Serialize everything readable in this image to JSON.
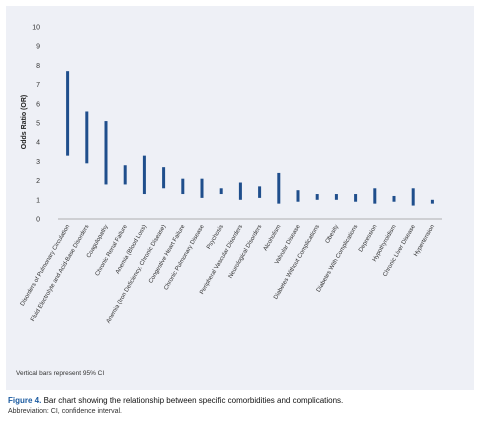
{
  "figure": {
    "label": "Figure 4.",
    "caption": " Bar chart showing the relationship between specific comorbidities and complications.",
    "abbreviation": "Abbreviation: CI, confidence interval.",
    "footnote": "Vertical bars represent 95% CI"
  },
  "colors": {
    "bar": "#1f4e8c",
    "background": "#eef0f6",
    "axis": "#999999"
  },
  "chart_data": {
    "type": "bar",
    "subtype": "error-bar range",
    "ylabel": "Odds Ratio (OR)",
    "xlabel": "",
    "ylim": [
      0,
      10
    ],
    "yticks": [
      0,
      1,
      2,
      3,
      4,
      5,
      6,
      7,
      8,
      9,
      10
    ],
    "grid": false,
    "categories": [
      "Disorders of Pulmonary Circulation",
      "Fluid Electrolyte and Acid-Base Disorders",
      "Coagulopathy",
      "Chronic Renal Failure",
      "Anemia (Blood Loss)",
      "Anemia (Iron Deficiency, Chronic Disease)",
      "Congestive Heart Failure",
      "Chronic Pulmonary Disease",
      "Psychosis",
      "Peripheral Vascular Disorders",
      "Neurological Disorders",
      "Alcoholism",
      "Valvular Disease",
      "Diabetes Without Complications",
      "Obesity",
      "Diabetes With Complications",
      "Depression",
      "Hypothyroidism",
      "Chronic Liver Disease",
      "Hypertension"
    ],
    "series": [
      {
        "lower": [
          3.3,
          2.9,
          1.8,
          1.8,
          1.3,
          1.6,
          1.3,
          1.1,
          1.3,
          1.0,
          1.1,
          0.8,
          0.9,
          1.0,
          1.0,
          0.9,
          0.8,
          0.9,
          0.7,
          0.8
        ],
        "upper": [
          7.7,
          5.6,
          5.1,
          2.8,
          3.3,
          2.7,
          2.1,
          2.1,
          1.6,
          1.9,
          1.7,
          2.4,
          1.5,
          1.3,
          1.3,
          1.3,
          1.6,
          1.2,
          1.6,
          1.0
        ]
      }
    ]
  }
}
